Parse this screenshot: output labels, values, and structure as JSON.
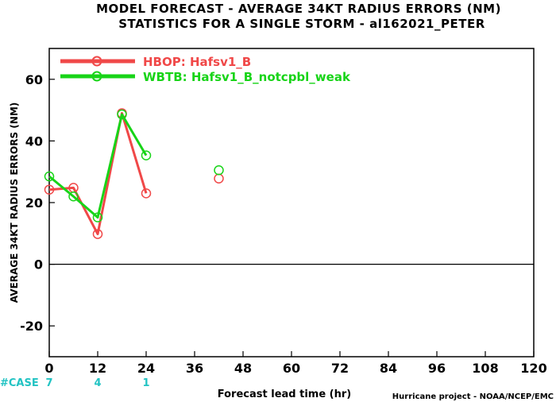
{
  "chart_data": {
    "type": "line",
    "title": "MODEL FORECAST - AVERAGE 34KT RADIUS ERRORS (NM)",
    "subtitle": "STATISTICS FOR A SINGLE STORM - al162021_PETER",
    "xlabel": "Forecast lead time (hr)",
    "ylabel": "AVERAGE 34KT RADIUS ERRORS (NM)",
    "credit": "Hurricane project - NOAA/NCEP/EMC",
    "xlim": [
      0,
      120
    ],
    "ylim": [
      -30,
      70
    ],
    "xticks": [
      0,
      12,
      24,
      36,
      48,
      60,
      72,
      84,
      96,
      108,
      120
    ],
    "yticks": [
      -20,
      0,
      20,
      40,
      60
    ],
    "case_label": "#CASE",
    "case_counts": [
      {
        "x": 0,
        "n": "7"
      },
      {
        "x": 12,
        "n": "4"
      },
      {
        "x": 24,
        "n": "1"
      }
    ],
    "series": [
      {
        "name": "HBOP: Hafsv1_B",
        "color": "#f04848",
        "points": [
          {
            "x": 0,
            "y": 24.2
          },
          {
            "x": 6,
            "y": 24.8
          },
          {
            "x": 12,
            "y": 9.8
          },
          {
            "x": 18,
            "y": 49.0
          },
          {
            "x": 24,
            "y": 23.0
          }
        ],
        "isolated": [
          {
            "x": 42,
            "y": 27.8
          }
        ]
      },
      {
        "name": "WBTB: Hafsv1_B_notcpbl_weak",
        "color": "#18d418",
        "points": [
          {
            "x": 0,
            "y": 28.5
          },
          {
            "x": 6,
            "y": 22.0
          },
          {
            "x": 12,
            "y": 15.2
          },
          {
            "x": 18,
            "y": 48.6
          },
          {
            "x": 24,
            "y": 35.3
          }
        ],
        "isolated": [
          {
            "x": 42,
            "y": 30.5
          }
        ]
      }
    ]
  }
}
